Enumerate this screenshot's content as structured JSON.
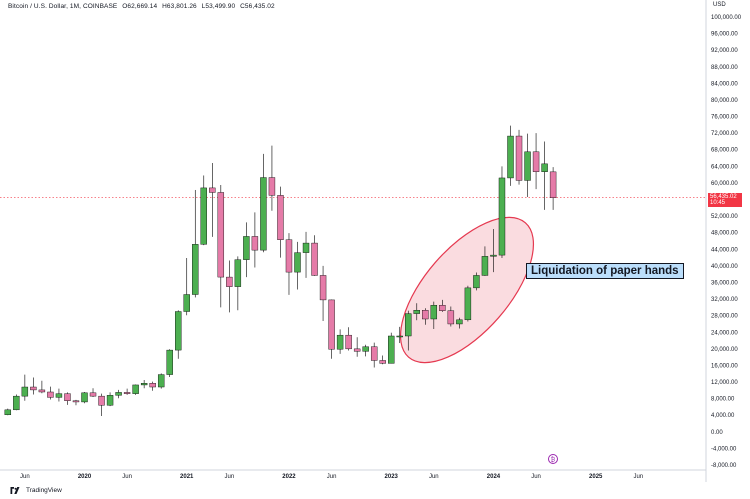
{
  "header": {
    "symbol": "Bitcoin / U.S. Dollar, 1M, COINBASE",
    "open": "O62,669.14",
    "high": "H63,801.26",
    "low": "L53,499.90",
    "close": "C56,435.02"
  },
  "currency_label": "USD",
  "price_tag": {
    "price": "56,435.02",
    "timer": "10:45"
  },
  "annotation": {
    "text": "Liquidation of paper hands"
  },
  "footer": {
    "brand": "TradingView"
  },
  "colors": {
    "up": "#4caf50",
    "down": "#e57ba8",
    "wick": "#000000",
    "ellipse_fill": "#f7c5cc",
    "ellipse_stroke": "#e53950",
    "price_tag": "#f23645",
    "annotation_bg": "#bbdefb"
  },
  "chart_data": {
    "type": "candlestick",
    "y_axis": {
      "ticks": [
        "100,000.00",
        "96,000.00",
        "92,000.00",
        "88,000.00",
        "84,000.00",
        "80,000.00",
        "76,000.00",
        "72,000.00",
        "68,000.00",
        "64,000.00",
        "60,000.00",
        "56,000.00",
        "52,000.00",
        "48,000.00",
        "44,000.00",
        "40,000.00",
        "36,000.00",
        "32,000.00",
        "28,000.00",
        "24,000.00",
        "20,000.00",
        "16,000.00",
        "12,000.00",
        "8,000.00",
        "4,000.00",
        "0.00",
        "-4,000.00",
        "-8,000.00"
      ],
      "range": [
        -8000,
        100000
      ]
    },
    "x_axis": {
      "ticks": [
        "Jun",
        "2020",
        "Jun",
        "2021",
        "Jun",
        "2022",
        "Jun",
        "2023",
        "Jun",
        "2024",
        "Jun",
        "2025",
        "Jun"
      ],
      "tick_months": [
        "2019-06",
        "2020-01",
        "2020-06",
        "2021-01",
        "2021-06",
        "2022-01",
        "2022-06",
        "2023-01",
        "2023-06",
        "2024-01",
        "2024-06",
        "2025-01",
        "2025-06"
      ]
    },
    "last_price": 56435.02,
    "candles": [
      {
        "date": "2019-04",
        "open": 4100,
        "high": 5600,
        "low": 4000,
        "close": 5300
      },
      {
        "date": "2019-05",
        "open": 5300,
        "high": 9000,
        "low": 5200,
        "close": 8600
      },
      {
        "date": "2019-06",
        "open": 8600,
        "high": 13800,
        "low": 7500,
        "close": 10800
      },
      {
        "date": "2019-07",
        "open": 10800,
        "high": 13100,
        "low": 9000,
        "close": 10100
      },
      {
        "date": "2019-08",
        "open": 10100,
        "high": 12300,
        "low": 9300,
        "close": 9600
      },
      {
        "date": "2019-09",
        "open": 9600,
        "high": 10900,
        "low": 7800,
        "close": 8300
      },
      {
        "date": "2019-10",
        "open": 8300,
        "high": 10400,
        "low": 7300,
        "close": 9200
      },
      {
        "date": "2019-11",
        "open": 9200,
        "high": 9500,
        "low": 6500,
        "close": 7500
      },
      {
        "date": "2019-12",
        "open": 7500,
        "high": 7700,
        "low": 6400,
        "close": 7200
      },
      {
        "date": "2020-01",
        "open": 7200,
        "high": 9600,
        "low": 6900,
        "close": 9400
      },
      {
        "date": "2020-02",
        "open": 9400,
        "high": 10500,
        "low": 8400,
        "close": 8600
      },
      {
        "date": "2020-03",
        "open": 8600,
        "high": 9200,
        "low": 3800,
        "close": 6400
      },
      {
        "date": "2020-04",
        "open": 6400,
        "high": 9500,
        "low": 6200,
        "close": 8800
      },
      {
        "date": "2020-05",
        "open": 8800,
        "high": 10100,
        "low": 8100,
        "close": 9500
      },
      {
        "date": "2020-06",
        "open": 9500,
        "high": 10400,
        "low": 8900,
        "close": 9200
      },
      {
        "date": "2020-07",
        "open": 9200,
        "high": 11400,
        "low": 8900,
        "close": 11300
      },
      {
        "date": "2020-08",
        "open": 11300,
        "high": 12500,
        "low": 10500,
        "close": 11700
      },
      {
        "date": "2020-09",
        "open": 11700,
        "high": 12100,
        "low": 9900,
        "close": 10800
      },
      {
        "date": "2020-10",
        "open": 10800,
        "high": 14100,
        "low": 10400,
        "close": 13800
      },
      {
        "date": "2020-11",
        "open": 13800,
        "high": 19900,
        "low": 13200,
        "close": 19700
      },
      {
        "date": "2020-12",
        "open": 19700,
        "high": 29300,
        "low": 17600,
        "close": 29000
      },
      {
        "date": "2021-01",
        "open": 29000,
        "high": 41900,
        "low": 28100,
        "close": 33100
      },
      {
        "date": "2021-02",
        "open": 33100,
        "high": 58300,
        "low": 32400,
        "close": 45200
      },
      {
        "date": "2021-03",
        "open": 45200,
        "high": 61800,
        "low": 45000,
        "close": 58800
      },
      {
        "date": "2021-04",
        "open": 58800,
        "high": 64800,
        "low": 47000,
        "close": 57700
      },
      {
        "date": "2021-05",
        "open": 57700,
        "high": 59500,
        "low": 30000,
        "close": 37300
      },
      {
        "date": "2021-06",
        "open": 37300,
        "high": 41300,
        "low": 28800,
        "close": 35000
      },
      {
        "date": "2021-07",
        "open": 35000,
        "high": 42300,
        "low": 29300,
        "close": 41500
      },
      {
        "date": "2021-08",
        "open": 41500,
        "high": 50500,
        "low": 37300,
        "close": 47100
      },
      {
        "date": "2021-09",
        "open": 47100,
        "high": 52900,
        "low": 39600,
        "close": 43800
      },
      {
        "date": "2021-10",
        "open": 43800,
        "high": 67000,
        "low": 43300,
        "close": 61300
      },
      {
        "date": "2021-11",
        "open": 61300,
        "high": 69000,
        "low": 53300,
        "close": 57000
      },
      {
        "date": "2021-12",
        "open": 57000,
        "high": 59100,
        "low": 42000,
        "close": 46300
      },
      {
        "date": "2022-01",
        "open": 46300,
        "high": 47900,
        "low": 33000,
        "close": 38500
      },
      {
        "date": "2022-02",
        "open": 38500,
        "high": 45800,
        "low": 34300,
        "close": 43200
      },
      {
        "date": "2022-03",
        "open": 43200,
        "high": 48200,
        "low": 37100,
        "close": 45500
      },
      {
        "date": "2022-04",
        "open": 45500,
        "high": 47400,
        "low": 37600,
        "close": 37700
      },
      {
        "date": "2022-05",
        "open": 37700,
        "high": 40000,
        "low": 26700,
        "close": 31800
      },
      {
        "date": "2022-06",
        "open": 31800,
        "high": 31900,
        "low": 17600,
        "close": 19900
      },
      {
        "date": "2022-07",
        "open": 19900,
        "high": 24700,
        "low": 18800,
        "close": 23300
      },
      {
        "date": "2022-08",
        "open": 23300,
        "high": 25200,
        "low": 19600,
        "close": 20000
      },
      {
        "date": "2022-09",
        "open": 20000,
        "high": 22800,
        "low": 18100,
        "close": 19400
      },
      {
        "date": "2022-10",
        "open": 19400,
        "high": 21000,
        "low": 18200,
        "close": 20500
      },
      {
        "date": "2022-11",
        "open": 20500,
        "high": 21500,
        "low": 15500,
        "close": 17200
      },
      {
        "date": "2022-12",
        "open": 17200,
        "high": 18400,
        "low": 16300,
        "close": 16500
      },
      {
        "date": "2023-01",
        "open": 16500,
        "high": 23900,
        "low": 16500,
        "close": 23100
      },
      {
        "date": "2023-02",
        "open": 23100,
        "high": 25300,
        "low": 21400,
        "close": 23100
      },
      {
        "date": "2023-03",
        "open": 23100,
        "high": 29200,
        "low": 19600,
        "close": 28500
      },
      {
        "date": "2023-04",
        "open": 28500,
        "high": 31000,
        "low": 26900,
        "close": 29300
      },
      {
        "date": "2023-05",
        "open": 29300,
        "high": 29800,
        "low": 25800,
        "close": 27200
      },
      {
        "date": "2023-06",
        "open": 27200,
        "high": 31400,
        "low": 24800,
        "close": 30500
      },
      {
        "date": "2023-07",
        "open": 30500,
        "high": 31800,
        "low": 28900,
        "close": 29200
      },
      {
        "date": "2023-08",
        "open": 29200,
        "high": 30200,
        "low": 25400,
        "close": 26000
      },
      {
        "date": "2023-09",
        "open": 26000,
        "high": 27500,
        "low": 24900,
        "close": 27000
      },
      {
        "date": "2023-10",
        "open": 27000,
        "high": 35200,
        "low": 26600,
        "close": 34700
      },
      {
        "date": "2023-11",
        "open": 34700,
        "high": 38400,
        "low": 34100,
        "close": 37700
      },
      {
        "date": "2023-12",
        "open": 37700,
        "high": 44700,
        "low": 37600,
        "close": 42300
      },
      {
        "date": "2024-01",
        "open": 42300,
        "high": 48900,
        "low": 38500,
        "close": 42600
      },
      {
        "date": "2024-02",
        "open": 42600,
        "high": 64000,
        "low": 41900,
        "close": 61200
      },
      {
        "date": "2024-03",
        "open": 61200,
        "high": 73800,
        "low": 59300,
        "close": 71300
      },
      {
        "date": "2024-04",
        "open": 71300,
        "high": 72800,
        "low": 59600,
        "close": 60600
      },
      {
        "date": "2024-05",
        "open": 60600,
        "high": 71900,
        "low": 56600,
        "close": 67500
      },
      {
        "date": "2024-06",
        "open": 67500,
        "high": 72000,
        "low": 58500,
        "close": 62700
      },
      {
        "date": "2024-07",
        "open": 62700,
        "high": 70000,
        "low": 53500,
        "close": 64600
      },
      {
        "date": "2024-08",
        "open": 62669.14,
        "high": 63801.26,
        "low": 53499.9,
        "close": 56435.02
      }
    ]
  }
}
